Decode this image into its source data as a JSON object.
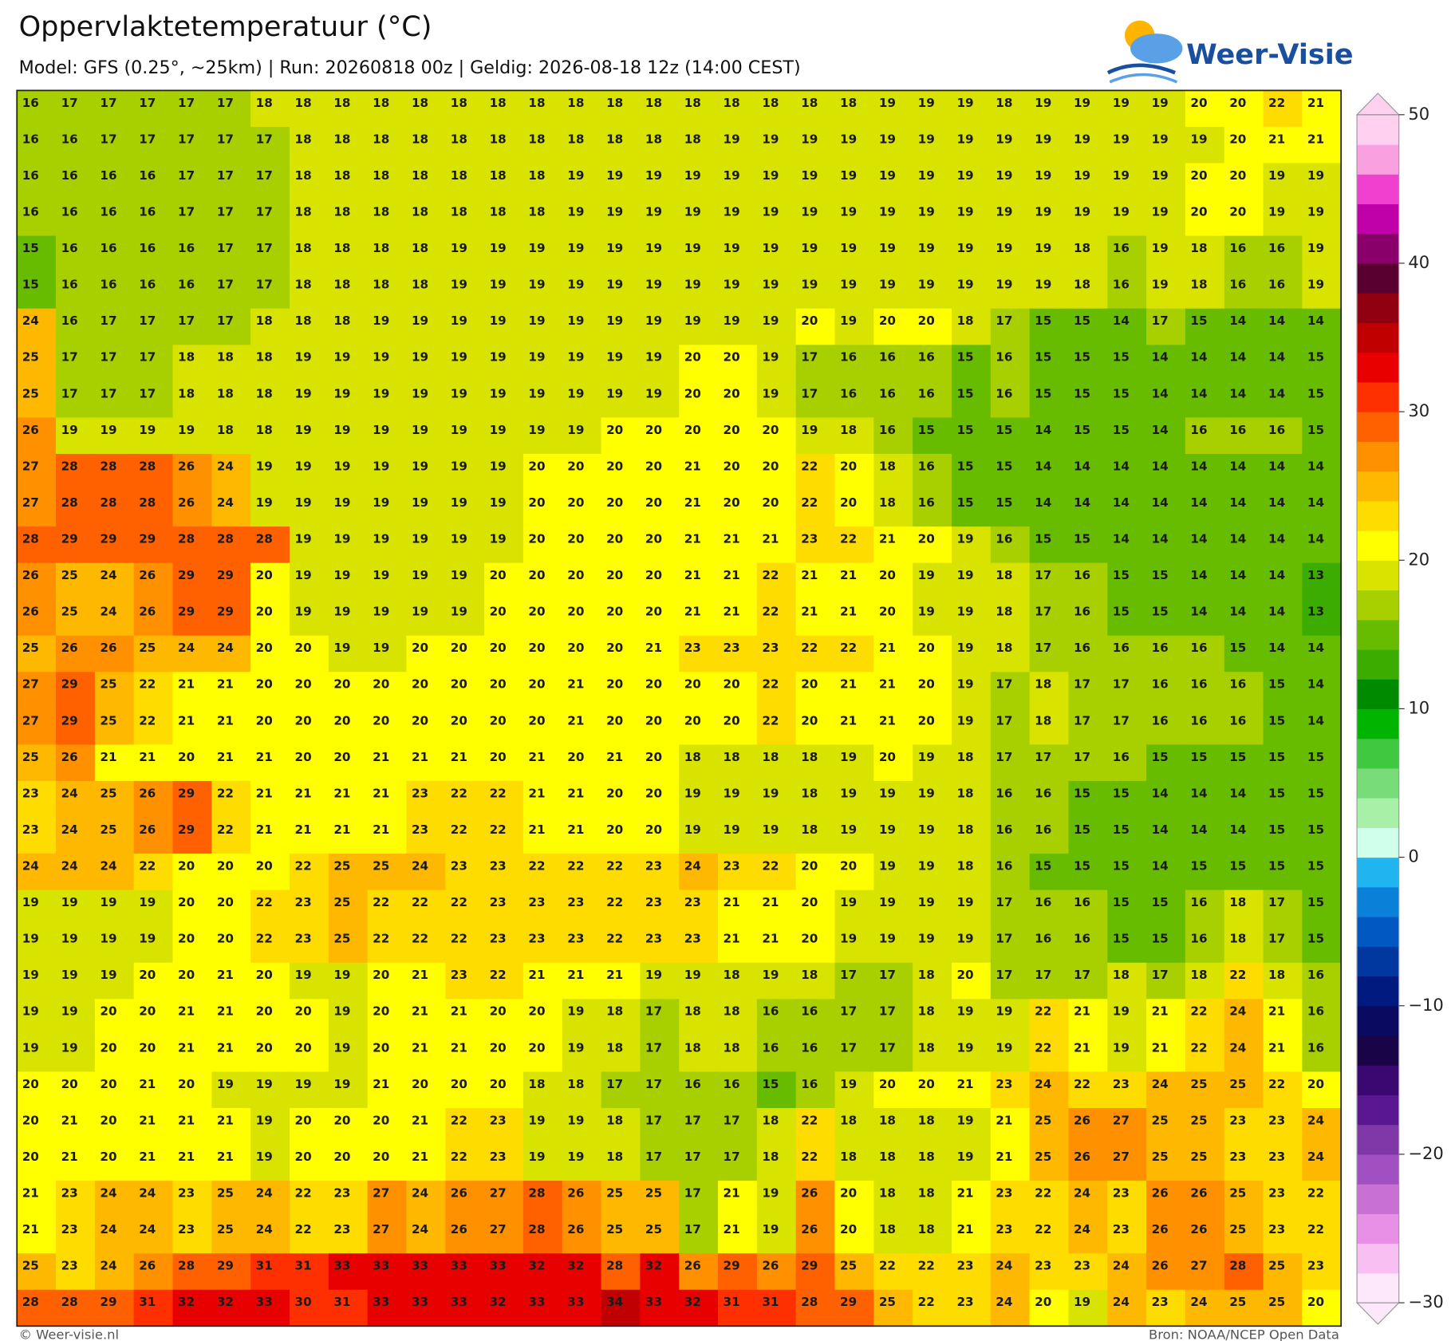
{
  "chart_data": {
    "type": "heatmap",
    "title": "Oppervlaktetemperatuur (°C)",
    "subtitle": "Model: GFS (0.25°, ~25km)  |  Run: 20260818 00z  |  Geldig: 2026-08-18 12z (14:00 CEST)",
    "logo": "Weer-Visie",
    "footer_left": "© Weer-visie.nl",
    "footer_right": "Bron: NOAA/NCEP Open Data",
    "values": [
      [
        16,
        17,
        17,
        17,
        17,
        17,
        18,
        18,
        18,
        18,
        18,
        18,
        18,
        18,
        18,
        18,
        18,
        18,
        18,
        18,
        18,
        18,
        19,
        19,
        19,
        18,
        19,
        19,
        19,
        19,
        20,
        20,
        22,
        21
      ],
      [
        16,
        16,
        17,
        17,
        17,
        17,
        17,
        18,
        18,
        18,
        18,
        18,
        18,
        18,
        18,
        18,
        18,
        18,
        19,
        19,
        19,
        19,
        19,
        19,
        19,
        19,
        19,
        19,
        19,
        19,
        19,
        20,
        21,
        21
      ],
      [
        16,
        16,
        16,
        16,
        17,
        17,
        17,
        18,
        18,
        18,
        18,
        18,
        18,
        18,
        19,
        19,
        19,
        19,
        19,
        19,
        19,
        19,
        19,
        19,
        19,
        19,
        19,
        19,
        19,
        19,
        20,
        20,
        19,
        19
      ],
      [
        16,
        16,
        16,
        16,
        17,
        17,
        17,
        18,
        18,
        18,
        18,
        18,
        18,
        18,
        19,
        19,
        19,
        19,
        19,
        19,
        19,
        19,
        19,
        19,
        19,
        19,
        19,
        19,
        19,
        19,
        20,
        20,
        19,
        19
      ],
      [
        15,
        16,
        16,
        16,
        16,
        17,
        17,
        18,
        18,
        18,
        18,
        19,
        19,
        19,
        19,
        19,
        19,
        19,
        19,
        19,
        19,
        19,
        19,
        19,
        19,
        19,
        19,
        18,
        16,
        19,
        18,
        16,
        16,
        19
      ],
      [
        15,
        16,
        16,
        16,
        16,
        17,
        17,
        18,
        18,
        18,
        18,
        19,
        19,
        19,
        19,
        19,
        19,
        19,
        19,
        19,
        19,
        19,
        19,
        19,
        19,
        19,
        19,
        18,
        16,
        19,
        18,
        16,
        16,
        19
      ],
      [
        24,
        16,
        17,
        17,
        17,
        17,
        18,
        18,
        18,
        19,
        19,
        19,
        19,
        19,
        19,
        19,
        19,
        19,
        19,
        19,
        20,
        19,
        20,
        20,
        18,
        17,
        15,
        15,
        14,
        17,
        15,
        14,
        14,
        14
      ],
      [
        25,
        17,
        17,
        17,
        18,
        18,
        18,
        19,
        19,
        19,
        19,
        19,
        19,
        19,
        19,
        19,
        19,
        20,
        20,
        19,
        17,
        16,
        16,
        16,
        15,
        16,
        15,
        15,
        15,
        14,
        14,
        14,
        14,
        15
      ],
      [
        25,
        17,
        17,
        17,
        18,
        18,
        18,
        19,
        19,
        19,
        19,
        19,
        19,
        19,
        19,
        19,
        19,
        20,
        20,
        19,
        17,
        16,
        16,
        16,
        15,
        16,
        15,
        15,
        15,
        14,
        14,
        14,
        14,
        15
      ],
      [
        26,
        19,
        19,
        19,
        19,
        18,
        18,
        19,
        19,
        19,
        19,
        19,
        19,
        19,
        19,
        20,
        20,
        20,
        20,
        20,
        19,
        18,
        16,
        15,
        15,
        15,
        14,
        15,
        15,
        14,
        16,
        16,
        16,
        15
      ],
      [
        27,
        28,
        28,
        28,
        26,
        24,
        19,
        19,
        19,
        19,
        19,
        19,
        19,
        20,
        20,
        20,
        20,
        21,
        20,
        20,
        22,
        20,
        18,
        16,
        15,
        15,
        14,
        14,
        14,
        14,
        14,
        14,
        14,
        14
      ],
      [
        27,
        28,
        28,
        28,
        26,
        24,
        19,
        19,
        19,
        19,
        19,
        19,
        19,
        20,
        20,
        20,
        20,
        21,
        20,
        20,
        22,
        20,
        18,
        16,
        15,
        15,
        14,
        14,
        14,
        14,
        14,
        14,
        14,
        14
      ],
      [
        28,
        29,
        29,
        29,
        28,
        28,
        28,
        19,
        19,
        19,
        19,
        19,
        19,
        20,
        20,
        20,
        20,
        21,
        21,
        21,
        23,
        22,
        21,
        20,
        19,
        16,
        15,
        15,
        14,
        14,
        14,
        14,
        14,
        14
      ],
      [
        26,
        25,
        24,
        26,
        29,
        29,
        20,
        19,
        19,
        19,
        19,
        19,
        20,
        20,
        20,
        20,
        20,
        21,
        21,
        22,
        21,
        21,
        20,
        19,
        19,
        18,
        17,
        16,
        15,
        15,
        14,
        14,
        14,
        13
      ],
      [
        26,
        25,
        24,
        26,
        29,
        29,
        20,
        19,
        19,
        19,
        19,
        19,
        20,
        20,
        20,
        20,
        20,
        21,
        21,
        22,
        21,
        21,
        20,
        19,
        19,
        18,
        17,
        16,
        15,
        15,
        14,
        14,
        14,
        13
      ],
      [
        25,
        26,
        26,
        25,
        24,
        24,
        20,
        20,
        19,
        19,
        20,
        20,
        20,
        20,
        20,
        20,
        21,
        23,
        23,
        23,
        22,
        22,
        21,
        20,
        19,
        18,
        17,
        16,
        16,
        16,
        16,
        15,
        14,
        14
      ],
      [
        27,
        29,
        25,
        22,
        21,
        21,
        20,
        20,
        20,
        20,
        20,
        20,
        20,
        20,
        21,
        20,
        20,
        20,
        20,
        22,
        20,
        21,
        21,
        20,
        19,
        17,
        18,
        17,
        17,
        16,
        16,
        16,
        15,
        14
      ],
      [
        27,
        29,
        25,
        22,
        21,
        21,
        20,
        20,
        20,
        20,
        20,
        20,
        20,
        20,
        21,
        20,
        20,
        20,
        20,
        22,
        20,
        21,
        21,
        20,
        19,
        17,
        18,
        17,
        17,
        16,
        16,
        16,
        15,
        14
      ],
      [
        25,
        26,
        21,
        21,
        20,
        21,
        21,
        20,
        20,
        21,
        21,
        21,
        20,
        21,
        20,
        21,
        20,
        18,
        18,
        18,
        18,
        19,
        20,
        19,
        18,
        17,
        17,
        17,
        16,
        15,
        15,
        15,
        15,
        15
      ],
      [
        23,
        24,
        25,
        26,
        29,
        22,
        21,
        21,
        21,
        21,
        23,
        22,
        22,
        21,
        21,
        20,
        20,
        19,
        19,
        19,
        18,
        19,
        19,
        19,
        18,
        16,
        16,
        15,
        15,
        14,
        14,
        14,
        15,
        15
      ],
      [
        23,
        24,
        25,
        26,
        29,
        22,
        21,
        21,
        21,
        21,
        23,
        22,
        22,
        21,
        21,
        20,
        20,
        19,
        19,
        19,
        18,
        19,
        19,
        19,
        18,
        16,
        16,
        15,
        15,
        14,
        14,
        14,
        15,
        15
      ],
      [
        24,
        24,
        24,
        22,
        20,
        20,
        20,
        22,
        25,
        25,
        24,
        23,
        23,
        22,
        22,
        22,
        23,
        24,
        23,
        22,
        20,
        20,
        19,
        19,
        18,
        16,
        15,
        15,
        15,
        14,
        15,
        15,
        15,
        15
      ],
      [
        19,
        19,
        19,
        19,
        20,
        20,
        22,
        23,
        25,
        22,
        22,
        22,
        23,
        23,
        23,
        22,
        23,
        23,
        21,
        21,
        20,
        19,
        19,
        19,
        19,
        17,
        16,
        16,
        15,
        15,
        16,
        18,
        17,
        15
      ],
      [
        19,
        19,
        19,
        19,
        20,
        20,
        22,
        23,
        25,
        22,
        22,
        22,
        23,
        23,
        23,
        22,
        23,
        23,
        21,
        21,
        20,
        19,
        19,
        19,
        19,
        17,
        16,
        16,
        15,
        15,
        16,
        18,
        17,
        15
      ],
      [
        19,
        19,
        19,
        20,
        20,
        21,
        20,
        19,
        19,
        20,
        21,
        23,
        22,
        21,
        21,
        21,
        19,
        19,
        18,
        19,
        18,
        17,
        17,
        18,
        20,
        17,
        17,
        17,
        18,
        17,
        18,
        22,
        18,
        16
      ],
      [
        19,
        19,
        20,
        20,
        21,
        21,
        20,
        20,
        19,
        20,
        21,
        21,
        20,
        20,
        19,
        18,
        17,
        18,
        18,
        16,
        16,
        17,
        17,
        18,
        19,
        19,
        22,
        21,
        19,
        21,
        22,
        24,
        21,
        16
      ],
      [
        19,
        19,
        20,
        20,
        21,
        21,
        20,
        20,
        19,
        20,
        21,
        21,
        20,
        20,
        19,
        18,
        17,
        18,
        18,
        16,
        16,
        17,
        17,
        18,
        19,
        19,
        22,
        21,
        19,
        21,
        22,
        24,
        21,
        16
      ],
      [
        20,
        20,
        20,
        21,
        20,
        19,
        19,
        19,
        19,
        21,
        20,
        20,
        20,
        18,
        18,
        17,
        17,
        16,
        16,
        15,
        16,
        19,
        20,
        20,
        21,
        23,
        24,
        22,
        23,
        24,
        25,
        25,
        22,
        20
      ],
      [
        20,
        21,
        20,
        21,
        21,
        21,
        19,
        20,
        20,
        20,
        21,
        22,
        23,
        19,
        19,
        18,
        17,
        17,
        17,
        18,
        22,
        18,
        18,
        18,
        19,
        21,
        25,
        26,
        27,
        25,
        25,
        23,
        23,
        24
      ],
      [
        20,
        21,
        20,
        21,
        21,
        21,
        19,
        20,
        20,
        20,
        21,
        22,
        23,
        19,
        19,
        18,
        17,
        17,
        17,
        18,
        22,
        18,
        18,
        18,
        19,
        21,
        25,
        26,
        27,
        25,
        25,
        23,
        23,
        24
      ],
      [
        21,
        23,
        24,
        24,
        23,
        25,
        24,
        22,
        23,
        27,
        24,
        26,
        27,
        28,
        26,
        25,
        25,
        17,
        21,
        19,
        26,
        20,
        18,
        18,
        21,
        23,
        22,
        24,
        23,
        26,
        26,
        25,
        23,
        22
      ],
      [
        21,
        23,
        24,
        24,
        23,
        25,
        24,
        22,
        23,
        27,
        24,
        26,
        27,
        28,
        26,
        25,
        25,
        17,
        21,
        19,
        26,
        20,
        18,
        18,
        21,
        23,
        22,
        24,
        23,
        26,
        26,
        25,
        23,
        22
      ],
      [
        25,
        23,
        24,
        26,
        28,
        29,
        31,
        31,
        33,
        33,
        33,
        33,
        33,
        32,
        32,
        28,
        32,
        26,
        29,
        26,
        29,
        25,
        22,
        22,
        23,
        24,
        23,
        23,
        24,
        26,
        27,
        28,
        25,
        23
      ],
      [
        28,
        28,
        29,
        31,
        32,
        32,
        33,
        30,
        31,
        33,
        33,
        33,
        32,
        33,
        33,
        34,
        33,
        32,
        31,
        31,
        28,
        29,
        25,
        22,
        23,
        24,
        20,
        19,
        24,
        23,
        24,
        25,
        25,
        20
      ]
    ],
    "clim": [
      -30,
      50
    ],
    "cticks": [
      50,
      40,
      30,
      20,
      10,
      0,
      {
        "value": -10,
        "label": "−10"
      },
      {
        "value": -20,
        "label": "−20"
      },
      {
        "value": -30,
        "label": "−30"
      }
    ],
    "colors": [
      "#fde8fb",
      "#f8c0f2",
      "#e890e6",
      "#c870d4",
      "#a050c0",
      "#8038a8",
      "#5a1890",
      "#3a0870",
      "#1a0448",
      "#0a0a60",
      "#001a80",
      "#0038a0",
      "#0058c0",
      "#0a80d8",
      "#20b4f0",
      "#d0ffec",
      "#a8f0a8",
      "#78dc78",
      "#40c840",
      "#00b400",
      "#008a00",
      "#3cac00",
      "#68bc00",
      "#a8d000",
      "#d8e400",
      "#ffff00",
      "#ffdc00",
      "#ffb800",
      "#ff9000",
      "#ff6000",
      "#ff3000",
      "#e80000",
      "#c00000",
      "#900010",
      "#5a0030",
      "#8a006a",
      "#c000a8",
      "#f040d0",
      "#f8a0e0",
      "#ffd0f0"
    ]
  }
}
